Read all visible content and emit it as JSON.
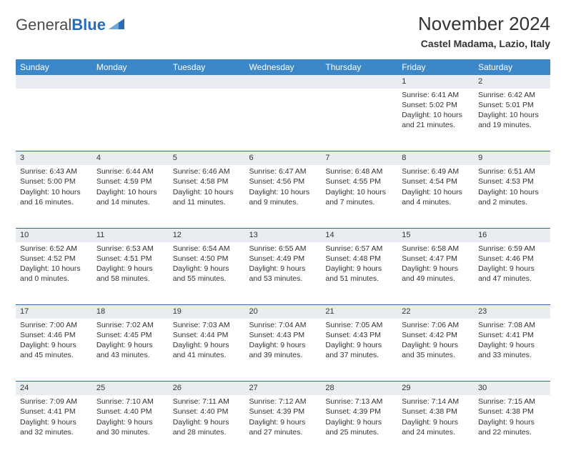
{
  "brand": {
    "name_a": "General",
    "name_b": "Blue"
  },
  "title": "November 2024",
  "location": "Castel Madama, Lazio, Italy",
  "colors": {
    "header_bg": "#3c87c7",
    "header_text": "#ffffff",
    "row_divider": "#2a6cb3",
    "daynum_bg": "#e9edf1",
    "body_text": "#333333",
    "brand_blue": "#2a6cb3",
    "brand_gray": "#4a4a4a",
    "page_bg": "#ffffff"
  },
  "weekday_labels": [
    "Sunday",
    "Monday",
    "Tuesday",
    "Wednesday",
    "Thursday",
    "Friday",
    "Saturday"
  ],
  "weeks": [
    [
      {
        "n": "",
        "sunrise": "",
        "sunset": "",
        "daylight": ""
      },
      {
        "n": "",
        "sunrise": "",
        "sunset": "",
        "daylight": ""
      },
      {
        "n": "",
        "sunrise": "",
        "sunset": "",
        "daylight": ""
      },
      {
        "n": "",
        "sunrise": "",
        "sunset": "",
        "daylight": ""
      },
      {
        "n": "",
        "sunrise": "",
        "sunset": "",
        "daylight": ""
      },
      {
        "n": "1",
        "sunrise": "Sunrise: 6:41 AM",
        "sunset": "Sunset: 5:02 PM",
        "daylight": "Daylight: 10 hours and 21 minutes."
      },
      {
        "n": "2",
        "sunrise": "Sunrise: 6:42 AM",
        "sunset": "Sunset: 5:01 PM",
        "daylight": "Daylight: 10 hours and 19 minutes."
      }
    ],
    [
      {
        "n": "3",
        "sunrise": "Sunrise: 6:43 AM",
        "sunset": "Sunset: 5:00 PM",
        "daylight": "Daylight: 10 hours and 16 minutes."
      },
      {
        "n": "4",
        "sunrise": "Sunrise: 6:44 AM",
        "sunset": "Sunset: 4:59 PM",
        "daylight": "Daylight: 10 hours and 14 minutes."
      },
      {
        "n": "5",
        "sunrise": "Sunrise: 6:46 AM",
        "sunset": "Sunset: 4:58 PM",
        "daylight": "Daylight: 10 hours and 11 minutes."
      },
      {
        "n": "6",
        "sunrise": "Sunrise: 6:47 AM",
        "sunset": "Sunset: 4:56 PM",
        "daylight": "Daylight: 10 hours and 9 minutes."
      },
      {
        "n": "7",
        "sunrise": "Sunrise: 6:48 AM",
        "sunset": "Sunset: 4:55 PM",
        "daylight": "Daylight: 10 hours and 7 minutes."
      },
      {
        "n": "8",
        "sunrise": "Sunrise: 6:49 AM",
        "sunset": "Sunset: 4:54 PM",
        "daylight": "Daylight: 10 hours and 4 minutes."
      },
      {
        "n": "9",
        "sunrise": "Sunrise: 6:51 AM",
        "sunset": "Sunset: 4:53 PM",
        "daylight": "Daylight: 10 hours and 2 minutes."
      }
    ],
    [
      {
        "n": "10",
        "sunrise": "Sunrise: 6:52 AM",
        "sunset": "Sunset: 4:52 PM",
        "daylight": "Daylight: 10 hours and 0 minutes."
      },
      {
        "n": "11",
        "sunrise": "Sunrise: 6:53 AM",
        "sunset": "Sunset: 4:51 PM",
        "daylight": "Daylight: 9 hours and 58 minutes."
      },
      {
        "n": "12",
        "sunrise": "Sunrise: 6:54 AM",
        "sunset": "Sunset: 4:50 PM",
        "daylight": "Daylight: 9 hours and 55 minutes."
      },
      {
        "n": "13",
        "sunrise": "Sunrise: 6:55 AM",
        "sunset": "Sunset: 4:49 PM",
        "daylight": "Daylight: 9 hours and 53 minutes."
      },
      {
        "n": "14",
        "sunrise": "Sunrise: 6:57 AM",
        "sunset": "Sunset: 4:48 PM",
        "daylight": "Daylight: 9 hours and 51 minutes."
      },
      {
        "n": "15",
        "sunrise": "Sunrise: 6:58 AM",
        "sunset": "Sunset: 4:47 PM",
        "daylight": "Daylight: 9 hours and 49 minutes."
      },
      {
        "n": "16",
        "sunrise": "Sunrise: 6:59 AM",
        "sunset": "Sunset: 4:46 PM",
        "daylight": "Daylight: 9 hours and 47 minutes."
      }
    ],
    [
      {
        "n": "17",
        "sunrise": "Sunrise: 7:00 AM",
        "sunset": "Sunset: 4:46 PM",
        "daylight": "Daylight: 9 hours and 45 minutes."
      },
      {
        "n": "18",
        "sunrise": "Sunrise: 7:02 AM",
        "sunset": "Sunset: 4:45 PM",
        "daylight": "Daylight: 9 hours and 43 minutes."
      },
      {
        "n": "19",
        "sunrise": "Sunrise: 7:03 AM",
        "sunset": "Sunset: 4:44 PM",
        "daylight": "Daylight: 9 hours and 41 minutes."
      },
      {
        "n": "20",
        "sunrise": "Sunrise: 7:04 AM",
        "sunset": "Sunset: 4:43 PM",
        "daylight": "Daylight: 9 hours and 39 minutes."
      },
      {
        "n": "21",
        "sunrise": "Sunrise: 7:05 AM",
        "sunset": "Sunset: 4:43 PM",
        "daylight": "Daylight: 9 hours and 37 minutes."
      },
      {
        "n": "22",
        "sunrise": "Sunrise: 7:06 AM",
        "sunset": "Sunset: 4:42 PM",
        "daylight": "Daylight: 9 hours and 35 minutes."
      },
      {
        "n": "23",
        "sunrise": "Sunrise: 7:08 AM",
        "sunset": "Sunset: 4:41 PM",
        "daylight": "Daylight: 9 hours and 33 minutes."
      }
    ],
    [
      {
        "n": "24",
        "sunrise": "Sunrise: 7:09 AM",
        "sunset": "Sunset: 4:41 PM",
        "daylight": "Daylight: 9 hours and 32 minutes."
      },
      {
        "n": "25",
        "sunrise": "Sunrise: 7:10 AM",
        "sunset": "Sunset: 4:40 PM",
        "daylight": "Daylight: 9 hours and 30 minutes."
      },
      {
        "n": "26",
        "sunrise": "Sunrise: 7:11 AM",
        "sunset": "Sunset: 4:40 PM",
        "daylight": "Daylight: 9 hours and 28 minutes."
      },
      {
        "n": "27",
        "sunrise": "Sunrise: 7:12 AM",
        "sunset": "Sunset: 4:39 PM",
        "daylight": "Daylight: 9 hours and 27 minutes."
      },
      {
        "n": "28",
        "sunrise": "Sunrise: 7:13 AM",
        "sunset": "Sunset: 4:39 PM",
        "daylight": "Daylight: 9 hours and 25 minutes."
      },
      {
        "n": "29",
        "sunrise": "Sunrise: 7:14 AM",
        "sunset": "Sunset: 4:38 PM",
        "daylight": "Daylight: 9 hours and 24 minutes."
      },
      {
        "n": "30",
        "sunrise": "Sunrise: 7:15 AM",
        "sunset": "Sunset: 4:38 PM",
        "daylight": "Daylight: 9 hours and 22 minutes."
      }
    ]
  ]
}
